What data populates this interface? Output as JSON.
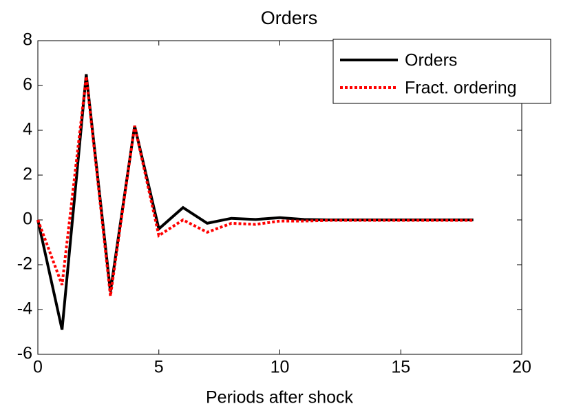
{
  "chart_data": {
    "type": "line",
    "title": "Orders",
    "xlabel": "Periods after shock",
    "x": [
      0,
      1,
      2,
      3,
      4,
      5,
      6,
      7,
      8,
      9,
      10,
      11,
      12,
      13,
      14,
      15,
      16,
      17,
      18
    ],
    "series": [
      {
        "name": "Orders",
        "color": "#000000",
        "style": "solid",
        "values": [
          0,
          -4.9,
          6.5,
          -3.2,
          4.2,
          -0.4,
          0.55,
          -0.15,
          0.07,
          0.02,
          0.1,
          0.02,
          0,
          0,
          0,
          0,
          0,
          0,
          0
        ]
      },
      {
        "name": "Fract. ordering",
        "color": "#ff0000",
        "style": "dotted",
        "values": [
          0,
          -2.9,
          6.4,
          -3.4,
          4.2,
          -0.7,
          0,
          -0.55,
          -0.15,
          -0.2,
          -0.05,
          -0.05,
          -0.02,
          -0.02,
          -0.02,
          -0.02,
          -0.02,
          -0.02,
          -0.02
        ]
      }
    ],
    "xlim": [
      0,
      20
    ],
    "xticks": [
      0,
      5,
      10,
      15,
      20
    ],
    "ylim": [
      -6,
      8
    ],
    "yticks": [
      -6,
      -4,
      -2,
      0,
      2,
      4,
      6,
      8
    ],
    "grid": false,
    "legend": "northeast"
  }
}
